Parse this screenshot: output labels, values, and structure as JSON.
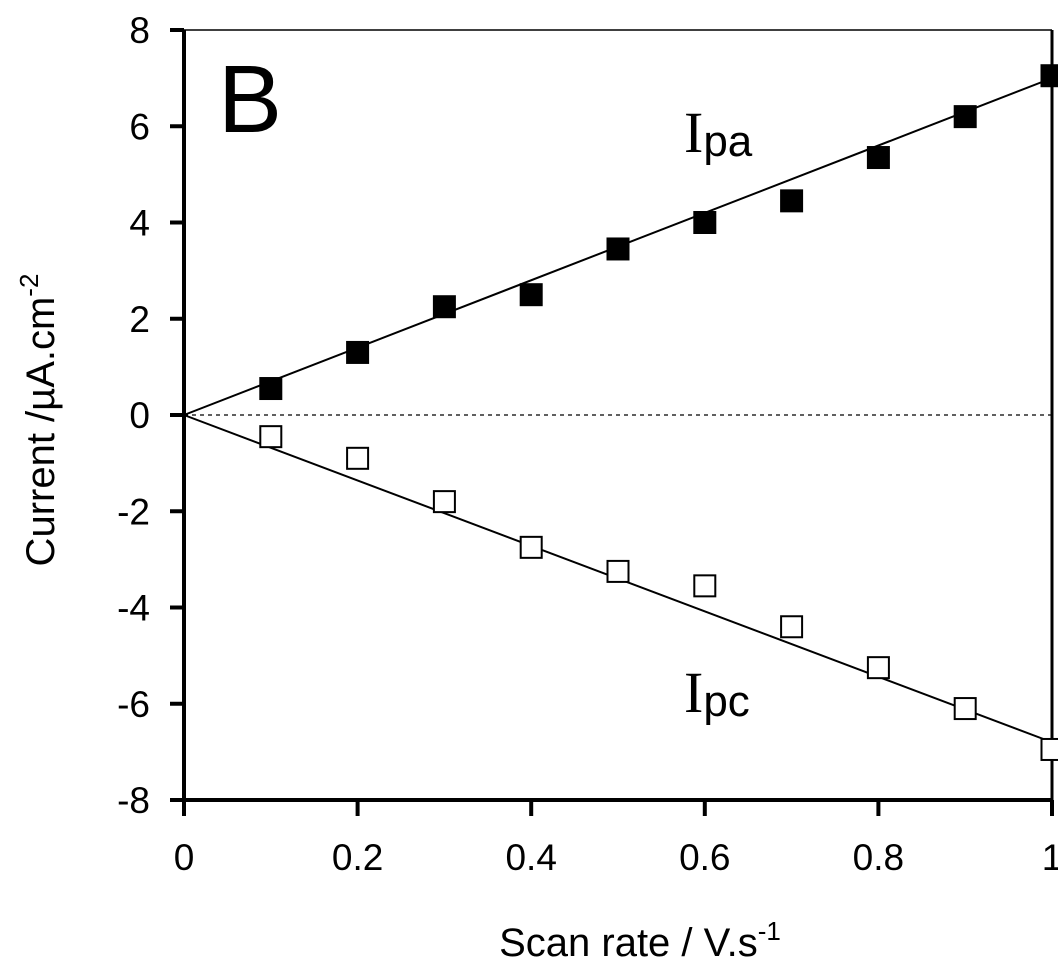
{
  "chart_data": {
    "type": "scatter",
    "panel_label": "B",
    "xlabel": "Scan rate  / V.s",
    "xlabel_sup": "-1",
    "ylabel": "Current  /µA.cm",
    "ylabel_sup": "-2",
    "xlim": [
      0,
      1
    ],
    "ylim": [
      -8,
      8
    ],
    "x_ticks": [
      0,
      0.2,
      0.4,
      0.6,
      0.8,
      1
    ],
    "x_tick_labels": [
      "0",
      "0.2",
      "0.4",
      "0.6",
      "0.8",
      "1"
    ],
    "y_ticks": [
      -8,
      -6,
      -4,
      -2,
      0,
      2,
      4,
      6,
      8
    ],
    "y_tick_labels": [
      "-8",
      "-6",
      "-4",
      "-2",
      "0",
      "2",
      "4",
      "6",
      "8"
    ],
    "zero_line": "dotted",
    "series": [
      {
        "name": "I",
        "subscript": "pa",
        "marker": "filled-square",
        "x": [
          0.1,
          0.2,
          0.3,
          0.4,
          0.5,
          0.6,
          0.7,
          0.8,
          0.9,
          1.0
        ],
        "y": [
          0.55,
          1.3,
          2.25,
          2.5,
          3.45,
          4.0,
          4.45,
          5.35,
          6.2,
          7.05
        ],
        "fit": {
          "x": [
            0,
            1
          ],
          "y": [
            0,
            7.0
          ]
        }
      },
      {
        "name": "I",
        "subscript": "pc",
        "marker": "open-square",
        "x": [
          0.1,
          0.2,
          0.3,
          0.4,
          0.5,
          0.6,
          0.7,
          0.8,
          0.9,
          1.0
        ],
        "y": [
          -0.45,
          -0.9,
          -1.8,
          -2.75,
          -3.25,
          -3.55,
          -4.4,
          -5.25,
          -6.1,
          -6.95
        ],
        "fit": {
          "x": [
            0,
            1
          ],
          "y": [
            0,
            -6.8
          ]
        }
      }
    ]
  }
}
